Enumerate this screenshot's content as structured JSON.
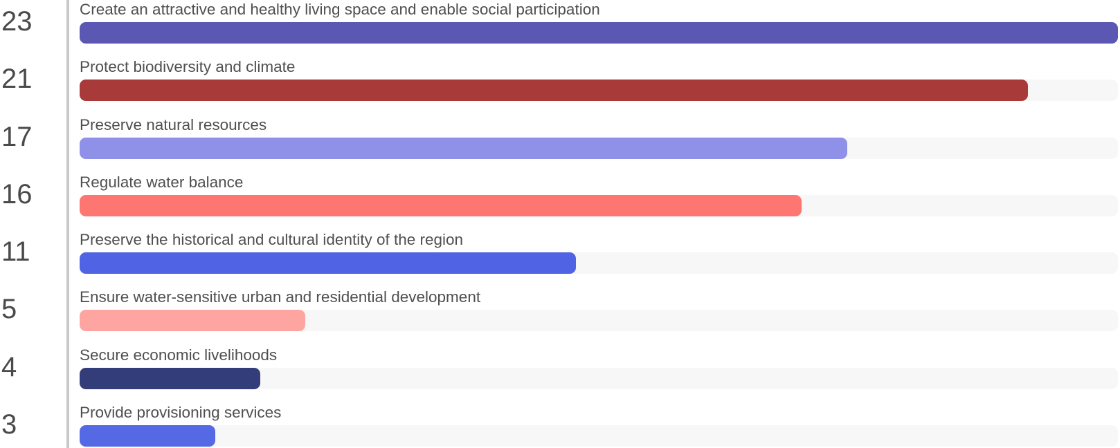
{
  "chart_data": {
    "type": "bar",
    "orientation": "horizontal",
    "title": "",
    "xlabel": "",
    "ylabel": "",
    "xlim": [
      0,
      23
    ],
    "grid": false,
    "track_color": "#f7f7f8",
    "axis_line_color": "#c9c9c9",
    "value_text_color": "#4a4a4a",
    "label_text_color": "#4f4f4f",
    "categories": [
      "Create an attractive and healthy living space and enable social participation",
      "Protect biodiversity and climate",
      "Preserve natural resources",
      "Regulate water balance",
      "Preserve the historical and cultural identity of the region",
      "Ensure water-sensitive urban and residential development",
      "Secure economic livelihoods",
      "Provide provisioning services"
    ],
    "values": [
      23,
      21,
      17,
      16,
      11,
      5,
      4,
      3
    ],
    "max_value": 23,
    "rows": [
      {
        "value": "23",
        "label": "Create an attractive and healthy living space and enable social participation",
        "color": "#5b58b4"
      },
      {
        "value": "21",
        "label": "Protect biodiversity and climate",
        "color": "#a83b39"
      },
      {
        "value": "17",
        "label": "Preserve natural resources",
        "color": "#8f90e8"
      },
      {
        "value": "16",
        "label": "Regulate water balance",
        "color": "#fd7671"
      },
      {
        "value": "11",
        "label": "Preserve the historical and cultural identity of the region",
        "color": "#4f63e4"
      },
      {
        "value": "5",
        "label": "Ensure water-sensitive urban and residential development",
        "color": "#fea5a1"
      },
      {
        "value": "4",
        "label": "Secure economic livelihoods",
        "color": "#333d79"
      },
      {
        "value": "3",
        "label": "Provide provisioning services",
        "color": "#5569e5"
      }
    ]
  }
}
